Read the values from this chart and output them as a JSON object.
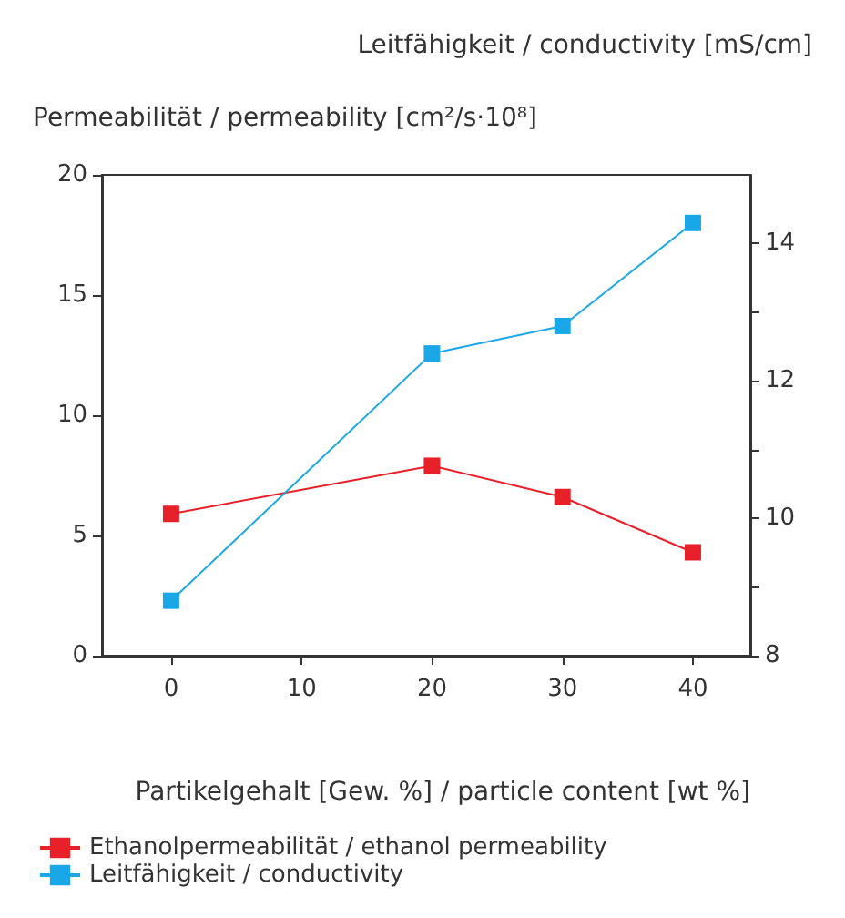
{
  "chart_data": {
    "type": "line",
    "xlabel": "Partikelgehalt [Gew. %] / particle content [wt %]",
    "ylabel": "Permeabilität / permeability [cm²/s·10⁸]",
    "y2label": "Leitfähigkeit / conductivity [mS/cm]",
    "x": [
      0,
      20,
      30,
      40
    ],
    "series": [
      {
        "name": "Ethanolpermeabilität / ethanol permeability",
        "color": "#e8202a",
        "values": [
          5.9,
          7.9,
          6.6,
          4.3
        ]
      },
      {
        "name": "Leitfähigkeit / conductivity",
        "color": "#1aa7e8",
        "values": [
          8.8,
          12.4,
          12.8,
          14.3
        ],
        "axis": "y2"
      }
    ],
    "xlim": [
      -5.3,
      44.4
    ],
    "xticks": [
      0,
      10,
      20,
      30,
      40
    ],
    "ylim": [
      0,
      20
    ],
    "yticks": [
      0,
      5,
      10,
      15,
      20
    ],
    "y2lim": [
      8,
      15
    ],
    "y2ticks": [
      8,
      {
        "value": 9,
        "label": null
      },
      10,
      {
        "value": 11,
        "label": null
      },
      12,
      {
        "value": 13,
        "label": null
      },
      14
    ],
    "grid": false,
    "legend": "bottom left",
    "marker": "square",
    "line_style": "solid"
  }
}
